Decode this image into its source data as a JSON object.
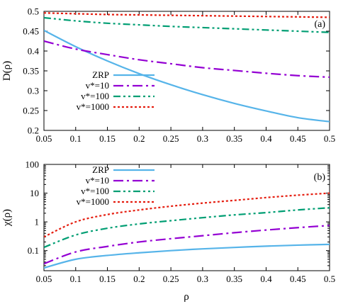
{
  "figure": {
    "x_axis_label": "ρ"
  },
  "chart_data": [
    {
      "type": "line",
      "panel_label": "(a)",
      "ylabel": "D(ρ)",
      "xlabel": "",
      "xlim": [
        0.05,
        0.5
      ],
      "ylim": [
        0.2,
        0.5
      ],
      "yscale": "linear",
      "x_ticks": [
        "0.05",
        "0.1",
        "0.15",
        "0.2",
        "0.25",
        "0.3",
        "0.35",
        "0.4",
        "0.45",
        "0.5"
      ],
      "y_ticks": [
        "0.2",
        "0.25",
        "0.3",
        "0.35",
        "0.4",
        "0.45",
        "0.5"
      ],
      "legend_position": "lower-left",
      "grid": false,
      "x": [
        0.05,
        0.1,
        0.15,
        0.2,
        0.25,
        0.3,
        0.35,
        0.4,
        0.45,
        0.5
      ],
      "series": [
        {
          "name": "ZRP",
          "color": "#56b4e9",
          "dash": "solid",
          "values": [
            0.452,
            0.411,
            0.375,
            0.343,
            0.315,
            0.29,
            0.268,
            0.249,
            0.232,
            0.222
          ]
        },
        {
          "name": "v*=10",
          "color": "#9400d3",
          "dash": "dash-dot",
          "values": [
            0.425,
            0.405,
            0.391,
            0.378,
            0.368,
            0.358,
            0.351,
            0.344,
            0.338,
            0.334
          ]
        },
        {
          "name": "v*=100",
          "color": "#009e73",
          "dash": "dash-dot-dot",
          "values": [
            0.484,
            0.476,
            0.47,
            0.466,
            0.462,
            0.459,
            0.456,
            0.453,
            0.45,
            0.447
          ]
        },
        {
          "name": "v*=1000",
          "color": "#e51e10",
          "dash": "dotted",
          "values": [
            0.496,
            0.494,
            0.492,
            0.491,
            0.49,
            0.489,
            0.488,
            0.487,
            0.486,
            0.485
          ]
        }
      ]
    },
    {
      "type": "line",
      "panel_label": "(b)",
      "ylabel": "χ(ρ)",
      "xlabel": "ρ",
      "xlim": [
        0.05,
        0.5
      ],
      "ylim": [
        0.02,
        100
      ],
      "yscale": "log",
      "x_ticks": [
        "0.05",
        "0.1",
        "0.15",
        "0.2",
        "0.25",
        "0.3",
        "0.35",
        "0.4",
        "0.45",
        "0.5"
      ],
      "y_ticks": [
        "0.1",
        "1",
        "10",
        "100"
      ],
      "legend_position": "top-left",
      "grid": false,
      "x": [
        0.05,
        0.1,
        0.15,
        0.2,
        0.25,
        0.3,
        0.35,
        0.4,
        0.45,
        0.5
      ],
      "series": [
        {
          "name": "ZRP",
          "color": "#56b4e9",
          "dash": "solid",
          "values": [
            0.025,
            0.05,
            0.068,
            0.084,
            0.1,
            0.115,
            0.129,
            0.143,
            0.155,
            0.165
          ]
        },
        {
          "name": "v*=10",
          "color": "#9400d3",
          "dash": "dash-dot",
          "values": [
            0.035,
            0.09,
            0.14,
            0.2,
            0.26,
            0.33,
            0.42,
            0.52,
            0.63,
            0.75
          ]
        },
        {
          "name": "v*=100",
          "color": "#009e73",
          "dash": "dash-dot-dot",
          "values": [
            0.13,
            0.35,
            0.6,
            0.85,
            1.1,
            1.4,
            1.75,
            2.1,
            2.6,
            3.1
          ]
        },
        {
          "name": "v*=1000",
          "color": "#e51e10",
          "dash": "dotted",
          "values": [
            0.3,
            1.0,
            1.8,
            2.6,
            3.5,
            4.5,
            5.6,
            7.0,
            8.5,
            10.0
          ]
        }
      ]
    }
  ]
}
